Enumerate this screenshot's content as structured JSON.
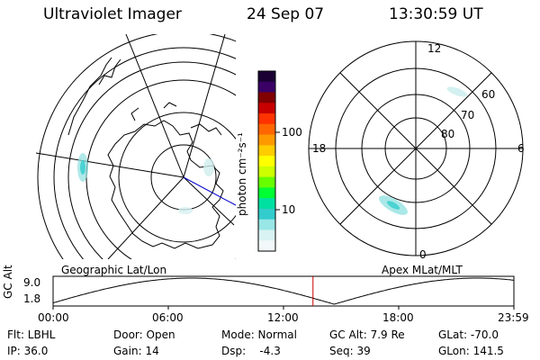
{
  "header": {
    "instrument": "Ultraviolet Imager",
    "date": "24 Sep 07",
    "time": "13:30:59 UT"
  },
  "left_panel": {
    "caption": "Geographic Lat/Lon"
  },
  "right_panel": {
    "caption": "Apex MLat/MLT",
    "mlt_labels": [
      "12",
      "18",
      "6",
      "0"
    ],
    "mlat_labels": [
      "60",
      "70",
      "80"
    ]
  },
  "colorbar": {
    "unit": "photon cm⁻²s⁻¹",
    "tick_labels": [
      "100",
      "10"
    ],
    "colors": [
      "#1a0033",
      "#3a0066",
      "#800000",
      "#c80000",
      "#ff3300",
      "#ff6600",
      "#ff9900",
      "#ffcc00",
      "#ffff00",
      "#ccff00",
      "#66ff00",
      "#00ff33",
      "#00e0a0",
      "#33cccc",
      "#99e6e6",
      "#d9f2f2",
      "#f2f8f8"
    ]
  },
  "altitude_plot": {
    "ylabel": "GC Alt",
    "y_ticks": [
      "9.0",
      "1.8"
    ],
    "x_ticks": [
      "00:00",
      "06:00",
      "12:00",
      "18:00",
      "23:59"
    ],
    "current_time_fraction": 0.564,
    "curve_color": "#000000",
    "marker_color": "#cc0000"
  },
  "status": {
    "row1": [
      "Flt: LBHL",
      "Door: Open",
      "Mode: Normal",
      "GC Alt: 7.9 Re",
      "GLat: -70.0"
    ],
    "row2": [
      "IP: 36.0",
      "Gain: 14",
      "Dsp:    -4.3",
      "Seq: 39",
      "GLon: 141.5"
    ]
  }
}
